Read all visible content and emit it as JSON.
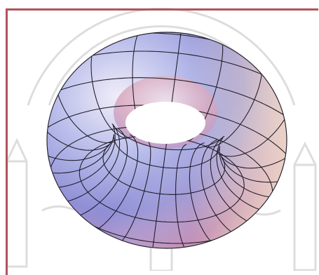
{
  "figure": {
    "subject": "torus",
    "mesh_rings": 24,
    "mesh_tubes": 12
  },
  "colors": {
    "frame": "#b0545e",
    "surface_blue": "#8088d8",
    "surface_light": "#e8e4f6",
    "surface_pink": "#c48aa8",
    "mesh": "#1e1a26",
    "watermark": "#c8c8c8"
  }
}
